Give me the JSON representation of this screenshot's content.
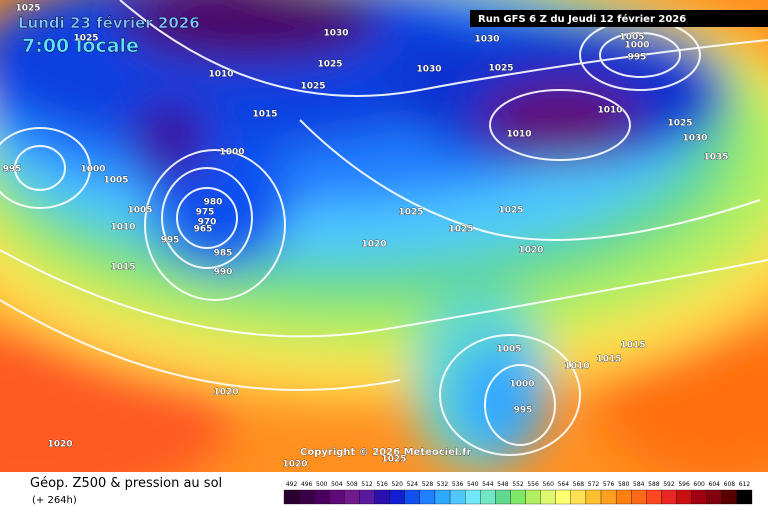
{
  "header": {
    "date": "Lundi 23 février 2026",
    "time": "7:00 locale",
    "run": "Run GFS 6 Z du Jeudi 12 février 2026",
    "copyright": "Copyright © 2026 Meteociel.fr"
  },
  "footer": {
    "title": "Géop. Z500 & pression au sol",
    "lead": "(+ 264h)"
  },
  "isobar_labels": [
    1025,
    1025,
    1030,
    1025,
    1025,
    1015,
    1010,
    1000,
    995,
    1000,
    1005,
    1005,
    1010,
    995,
    980,
    975,
    970,
    965,
    985,
    990,
    1015,
    1020,
    1025,
    1025,
    1025,
    1020,
    1030,
    1025,
    1010,
    1010,
    1005,
    1000,
    995,
    1025,
    1030,
    1035,
    1005,
    1000,
    995,
    1010,
    1015,
    1015,
    1020,
    1020,
    1020,
    1025,
    1030
  ],
  "legend": {
    "items": [
      {
        "value": 492,
        "color": "#2b0030"
      },
      {
        "value": 496,
        "color": "#3a0048"
      },
      {
        "value": 500,
        "color": "#4b0060"
      },
      {
        "value": 504,
        "color": "#5e0a78"
      },
      {
        "value": 508,
        "color": "#701a8c"
      },
      {
        "value": 512,
        "color": "#5a1aa0"
      },
      {
        "value": 516,
        "color": "#2a10b0"
      },
      {
        "value": 520,
        "color": "#1020d0"
      },
      {
        "value": 524,
        "color": "#1050f0"
      },
      {
        "value": 528,
        "color": "#2080ff"
      },
      {
        "value": 532,
        "color": "#30a8ff"
      },
      {
        "value": 536,
        "color": "#50c8ff"
      },
      {
        "value": 540,
        "color": "#70e8f8"
      },
      {
        "value": 544,
        "color": "#70e8c8"
      },
      {
        "value": 548,
        "color": "#60d890"
      },
      {
        "value": 552,
        "color": "#80e868"
      },
      {
        "value": 556,
        "color": "#b0f060"
      },
      {
        "value": 560,
        "color": "#e0f870"
      },
      {
        "value": 564,
        "color": "#ffff70"
      },
      {
        "value": 568,
        "color": "#ffe050"
      },
      {
        "value": 572,
        "color": "#ffc030"
      },
      {
        "value": 576,
        "color": "#ffa020"
      },
      {
        "value": 580,
        "color": "#ff8010"
      },
      {
        "value": 584,
        "color": "#ff6818"
      },
      {
        "value": 588,
        "color": "#ff4820"
      },
      {
        "value": 592,
        "color": "#e82820"
      },
      {
        "value": 596,
        "color": "#c81010"
      },
      {
        "value": 600,
        "color": "#a00010"
      },
      {
        "value": 604,
        "color": "#800010"
      },
      {
        "value": 608,
        "color": "#580000"
      },
      {
        "value": 612,
        "color": "#000000"
      }
    ]
  }
}
